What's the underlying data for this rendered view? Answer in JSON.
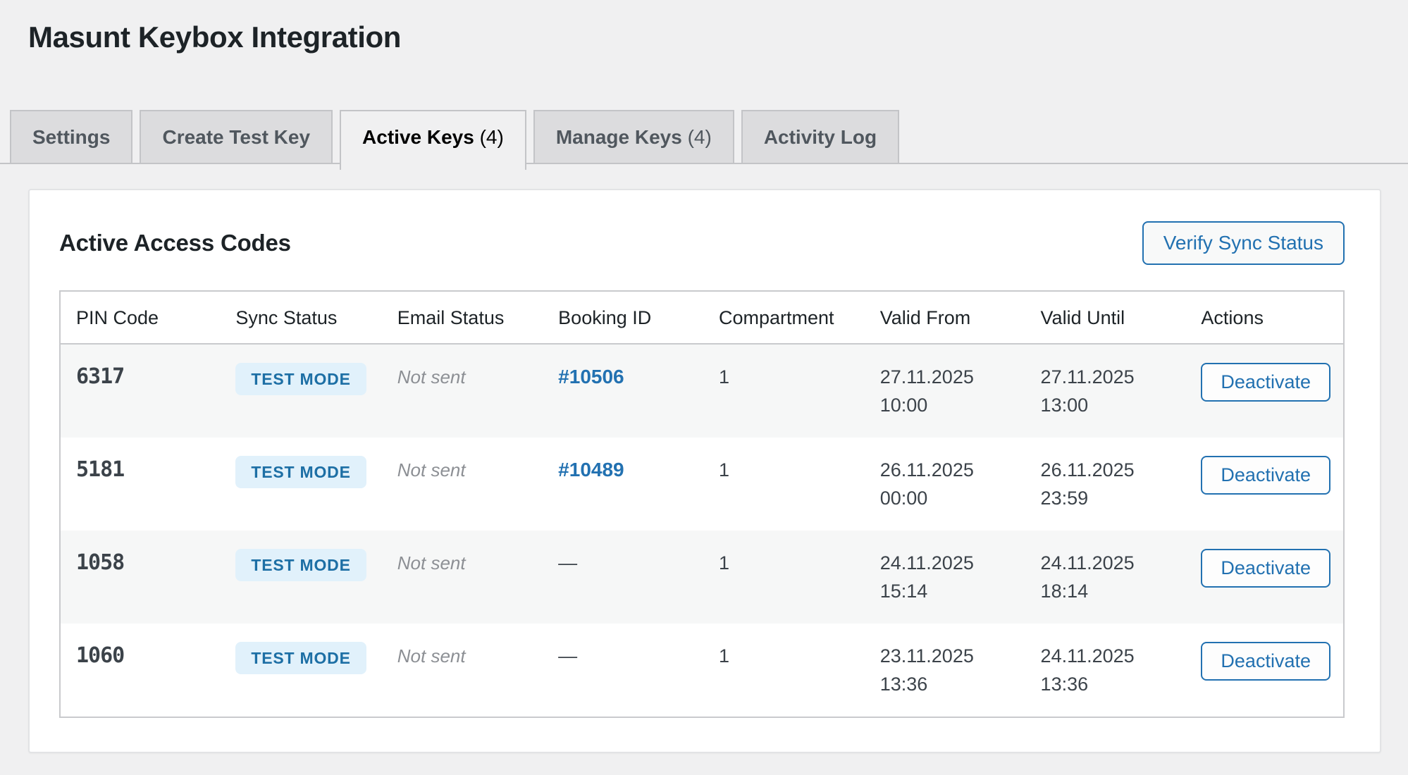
{
  "page": {
    "title": "Masunt Keybox Integration"
  },
  "tabs": [
    {
      "label": "Settings"
    },
    {
      "label": "Create Test Key"
    },
    {
      "label": "Active Keys",
      "count": "(4)",
      "active": true
    },
    {
      "label": "Manage Keys",
      "count": "(4)"
    },
    {
      "label": "Activity Log"
    }
  ],
  "panel": {
    "heading": "Active Access Codes",
    "verify_button_label": "Verify Sync Status"
  },
  "table": {
    "columns": [
      "PIN Code",
      "Sync Status",
      "Email Status",
      "Booking ID",
      "Compartment",
      "Valid From",
      "Valid Until",
      "Actions"
    ],
    "rows": [
      {
        "pin": "6317",
        "sync_status": "TEST MODE",
        "email_status": "Not sent",
        "booking_id": "#10506",
        "compartment": "1",
        "valid_from_date": "27.11.2025",
        "valid_from_time": "10:00",
        "valid_until_date": "27.11.2025",
        "valid_until_time": "13:00",
        "action": "Deactivate"
      },
      {
        "pin": "5181",
        "sync_status": "TEST MODE",
        "email_status": "Not sent",
        "booking_id": "#10489",
        "compartment": "1",
        "valid_from_date": "26.11.2025",
        "valid_from_time": "00:00",
        "valid_until_date": "26.11.2025",
        "valid_until_time": "23:59",
        "action": "Deactivate"
      },
      {
        "pin": "1058",
        "sync_status": "TEST MODE",
        "email_status": "Not sent",
        "booking_id": "—",
        "compartment": "1",
        "valid_from_date": "24.11.2025",
        "valid_from_time": "15:14",
        "valid_until_date": "24.11.2025",
        "valid_until_time": "18:14",
        "action": "Deactivate"
      },
      {
        "pin": "1060",
        "sync_status": "TEST MODE",
        "email_status": "Not sent",
        "booking_id": "—",
        "compartment": "1",
        "valid_from_date": "23.11.2025",
        "valid_from_time": "13:36",
        "valid_until_date": "24.11.2025",
        "valid_until_time": "13:36",
        "action": "Deactivate"
      }
    ]
  },
  "colors": {
    "page-bg": "#f0f0f1",
    "accent": "#2271b1",
    "badge-bg": "#e1f1fb",
    "badge-text": "#1d6fa5"
  }
}
